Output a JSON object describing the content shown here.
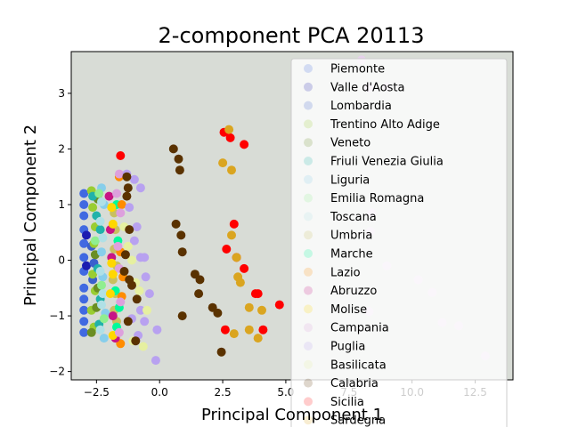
{
  "chart_data": {
    "type": "scatter",
    "title": "2-component PCA 20113",
    "xlabel": "Principal Component 1",
    "ylabel": "Principal Component 2",
    "xlim": [
      -3.5,
      14
    ],
    "ylim": [
      -2.15,
      3.75
    ],
    "xticks": [
      -2.5,
      0.0,
      2.5,
      5.0,
      7.5,
      10.0,
      12.5
    ],
    "xtick_labels": [
      "−2.5",
      "0.0",
      "2.5",
      "5.0",
      "7.5",
      "10.0",
      "12.5"
    ],
    "yticks": [
      -2,
      -1,
      0,
      1,
      2,
      3
    ],
    "ytick_labels": [
      "−2",
      "−1",
      "0",
      "1",
      "2",
      "3"
    ],
    "grid": false,
    "legend_position": "right",
    "background_color": "#d8dcd6",
    "series": [
      {
        "name": "Piemonte",
        "color": "#4169e1",
        "points": [
          [
            -3.0,
            1.2
          ],
          [
            -3.0,
            1.0
          ],
          [
            -3.0,
            0.8
          ],
          [
            -3.0,
            0.55
          ],
          [
            -3.0,
            0.3
          ],
          [
            -3.0,
            0.05
          ],
          [
            -3.0,
            -0.2
          ],
          [
            -3.0,
            -0.5
          ],
          [
            -3.0,
            -0.7
          ],
          [
            -3.0,
            -0.9
          ],
          [
            -3.0,
            -1.1
          ],
          [
            -3.0,
            -1.3
          ]
        ]
      },
      {
        "name": "Valle d'Aosta",
        "color": "#1c1cb0",
        "points": [
          [
            -2.9,
            0.45
          ],
          [
            -2.9,
            -0.1
          ]
        ]
      },
      {
        "name": "Lombardia",
        "color": "#3a5fcd",
        "points": [
          [
            -2.7,
            0.25
          ],
          [
            -2.6,
            -0.05
          ],
          [
            -2.65,
            -0.35
          ]
        ]
      },
      {
        "name": "Trentino Alto Adige",
        "color": "#9acd32",
        "points": [
          [
            -2.7,
            1.25
          ],
          [
            -2.65,
            0.95
          ],
          [
            -2.55,
            0.6
          ],
          [
            -2.6,
            0.3
          ],
          [
            -2.65,
            -0.25
          ],
          [
            -2.55,
            -0.55
          ],
          [
            -2.7,
            -0.9
          ],
          [
            -2.6,
            -1.2
          ]
        ]
      },
      {
        "name": "Veneto",
        "color": "#6b8e23",
        "points": [
          [
            -2.45,
            1.1
          ],
          [
            -2.55,
            0.1
          ],
          [
            -2.45,
            -0.5
          ],
          [
            -2.5,
            -0.85
          ],
          [
            -2.7,
            -1.3
          ]
        ]
      },
      {
        "name": "Friuli Venezia Giulia",
        "color": "#20b2aa",
        "points": [
          [
            -2.65,
            1.15
          ],
          [
            -2.5,
            0.8
          ],
          [
            -2.35,
            0.55
          ],
          [
            -2.45,
            -0.15
          ],
          [
            -2.35,
            -0.7
          ],
          [
            -2.4,
            -1.15
          ]
        ]
      },
      {
        "name": "Liguria",
        "color": "#87ceeb",
        "points": [
          [
            -2.3,
            1.3
          ],
          [
            -2.2,
            1.0
          ],
          [
            -2.3,
            0.15
          ],
          [
            -2.25,
            -0.3
          ],
          [
            -2.15,
            -0.95
          ],
          [
            -2.2,
            -1.4
          ]
        ]
      },
      {
        "name": "Emilia Romagna",
        "color": "#90ee90",
        "points": [
          [
            -2.4,
            1.2
          ],
          [
            -2.55,
            0.35
          ],
          [
            -2.3,
            -0.45
          ],
          [
            -2.2,
            -1.05
          ]
        ]
      },
      {
        "name": "Toscana",
        "color": "#b0e0e6",
        "points": [
          [
            -2.3,
            1.05
          ],
          [
            -2.35,
            0.7
          ],
          [
            -2.25,
            0.4
          ],
          [
            -2.35,
            -0.2
          ],
          [
            -2.25,
            -0.6
          ],
          [
            -2.3,
            -0.8
          ],
          [
            -2.35,
            -1.25
          ]
        ]
      },
      {
        "name": "Umbria",
        "color": "#c8c060",
        "points": [
          [
            -1.8,
            0.85
          ],
          [
            -1.75,
            0.55
          ],
          [
            -1.8,
            0.2
          ],
          [
            -1.7,
            -0.1
          ],
          [
            -1.85,
            -0.35
          ],
          [
            -1.75,
            -0.6
          ],
          [
            -1.8,
            -0.9
          ],
          [
            -1.7,
            -1.1
          ]
        ]
      },
      {
        "name": "Marche",
        "color": "#00fa9a",
        "points": [
          [
            -1.7,
            1.0
          ],
          [
            -1.65,
            0.35
          ],
          [
            -1.75,
            -0.55
          ],
          [
            -1.6,
            -0.85
          ],
          [
            -1.7,
            -1.2
          ]
        ]
      },
      {
        "name": "Lazio",
        "color": "#ff8c00",
        "points": [
          [
            -1.6,
            1.5
          ],
          [
            -1.5,
            1.0
          ],
          [
            -1.55,
            0.15
          ],
          [
            -1.45,
            -0.3
          ],
          [
            -1.5,
            -0.65
          ],
          [
            -1.55,
            -1.5
          ]
        ]
      },
      {
        "name": "Abruzzo",
        "color": "#c71585",
        "points": [
          [
            -2.0,
            1.15
          ],
          [
            -1.95,
            0.55
          ],
          [
            -1.9,
            0.05
          ],
          [
            -1.85,
            -1.0
          ],
          [
            -1.75,
            -1.4
          ]
        ]
      },
      {
        "name": "Molise",
        "color": "#ffd700",
        "points": [
          [
            -1.9,
            0.95
          ],
          [
            -1.85,
            0.65
          ],
          [
            -1.9,
            -0.05
          ],
          [
            -1.85,
            -0.25
          ],
          [
            -1.95,
            -0.6
          ],
          [
            -1.85,
            -1.35
          ]
        ]
      },
      {
        "name": "Campania",
        "color": "#dda0dd",
        "points": [
          [
            -1.6,
            1.55
          ],
          [
            -1.7,
            1.2
          ],
          [
            -1.55,
            0.85
          ],
          [
            -1.65,
            0.25
          ],
          [
            -1.6,
            -0.15
          ],
          [
            -1.55,
            -0.75
          ],
          [
            -1.6,
            -1.3
          ]
        ]
      },
      {
        "name": "Puglia",
        "color": "#b8a1f0",
        "points": [
          [
            -1.3,
            1.55
          ],
          [
            -1.0,
            1.45
          ],
          [
            -0.75,
            1.3
          ],
          [
            -1.2,
            0.95
          ],
          [
            -0.9,
            0.6
          ],
          [
            -1.0,
            0.35
          ],
          [
            -0.75,
            0.05
          ],
          [
            -0.6,
            0.05
          ],
          [
            -0.55,
            -0.3
          ],
          [
            -0.4,
            -0.6
          ],
          [
            -0.75,
            -0.9
          ],
          [
            -0.6,
            -1.1
          ],
          [
            -0.1,
            -1.25
          ],
          [
            -0.15,
            -1.8
          ],
          [
            -0.85,
            -1.35
          ],
          [
            -1.1,
            -1.05
          ]
        ]
      },
      {
        "name": "Basilicata",
        "color": "#e6f0a0",
        "points": [
          [
            -1.4,
            0.6
          ],
          [
            -1.25,
            0.25
          ],
          [
            -1.1,
            0.0
          ],
          [
            -0.95,
            -0.4
          ],
          [
            -0.8,
            -0.55
          ],
          [
            -0.5,
            -0.9
          ],
          [
            -0.65,
            -1.55
          ],
          [
            -1.05,
            -1.45
          ]
        ]
      },
      {
        "name": "Calabria",
        "color": "#5a3200",
        "points": [
          [
            -1.3,
            1.5
          ],
          [
            -1.25,
            1.3
          ],
          [
            -1.3,
            1.15
          ],
          [
            -1.2,
            0.55
          ],
          [
            -1.35,
            0.1
          ],
          [
            -1.4,
            -0.2
          ],
          [
            -1.2,
            -0.35
          ],
          [
            -1.1,
            -0.45
          ],
          [
            -0.9,
            -0.7
          ],
          [
            -1.25,
            -1.1
          ],
          [
            -0.95,
            -1.45
          ],
          [
            0.55,
            2.0
          ],
          [
            0.75,
            1.82
          ],
          [
            0.8,
            1.62
          ],
          [
            0.65,
            0.65
          ],
          [
            0.85,
            0.45
          ],
          [
            0.9,
            0.15
          ],
          [
            1.4,
            -0.25
          ],
          [
            1.6,
            -0.35
          ],
          [
            1.55,
            -0.6
          ],
          [
            0.9,
            -1.0
          ],
          [
            2.1,
            -0.85
          ],
          [
            2.3,
            -0.95
          ],
          [
            2.45,
            -1.65
          ]
        ]
      },
      {
        "name": "Sicilia",
        "color": "#ff0000",
        "points": [
          [
            -1.55,
            1.88
          ],
          [
            2.55,
            2.3
          ],
          [
            2.8,
            2.2
          ],
          [
            3.35,
            2.08
          ],
          [
            2.95,
            0.65
          ],
          [
            2.65,
            0.2
          ],
          [
            3.05,
            0.05
          ],
          [
            3.35,
            -0.15
          ],
          [
            3.8,
            -0.6
          ],
          [
            3.9,
            -0.6
          ],
          [
            4.1,
            -1.25
          ],
          [
            4.75,
            -0.8
          ],
          [
            2.6,
            -1.25
          ]
        ]
      },
      {
        "name": "Sardegna",
        "color": "#daa520",
        "points": [
          [
            2.75,
            2.35
          ],
          [
            2.5,
            1.75
          ],
          [
            2.85,
            1.62
          ],
          [
            2.85,
            0.45
          ],
          [
            3.05,
            0.05
          ],
          [
            3.1,
            -0.3
          ],
          [
            3.2,
            -0.4
          ],
          [
            3.55,
            -0.85
          ],
          [
            4.05,
            -0.9
          ],
          [
            3.9,
            -1.4
          ],
          [
            3.55,
            -1.25
          ],
          [
            2.95,
            -1.32
          ]
        ]
      },
      {
        "name": "",
        "color": "#e6d0ec",
        "points": [
          [
            8.0,
            3.6
          ],
          [
            8.3,
            3.1
          ],
          [
            9.0,
            3.12
          ],
          [
            8.4,
            0.85
          ],
          [
            8.35,
            0.52
          ],
          [
            9.0,
            -0.1
          ],
          [
            10.25,
            -0.35
          ],
          [
            10.8,
            -0.58
          ],
          [
            8.3,
            -0.92
          ],
          [
            11.2,
            -1.12
          ],
          [
            11.85,
            -1.18
          ],
          [
            12.9,
            -1.72
          ]
        ]
      }
    ]
  }
}
